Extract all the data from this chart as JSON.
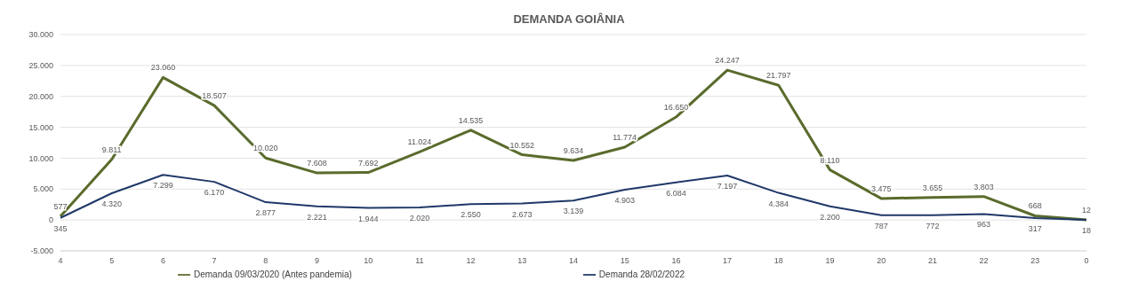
{
  "chart_data": {
    "type": "line",
    "title": "DEMANDA GOIÂNIA",
    "categories": [
      "4",
      "5",
      "6",
      "7",
      "8",
      "9",
      "10",
      "11",
      "12",
      "13",
      "14",
      "15",
      "16",
      "17",
      "18",
      "19",
      "20",
      "21",
      "22",
      "23",
      "0"
    ],
    "series": [
      {
        "name": "Demanda 09/03/2020 (Antes pandemia)",
        "color": "#5a6b2c",
        "values": [
          577,
          9811,
          23060,
          18507,
          10020,
          7608,
          7692,
          11024,
          14535,
          10552,
          9634,
          11774,
          16650,
          24247,
          21797,
          8110,
          3475,
          3655,
          3803,
          668,
          12
        ],
        "value_labels": [
          "577",
          "9.811",
          "23.060",
          "18.507",
          "10.020",
          "7.608",
          "7.692",
          "11.024",
          "14.535",
          "10.552",
          "9.634",
          "11.774",
          "16.650",
          "24.247",
          "21.797",
          "8.110",
          "3.475",
          "3.655",
          "3.803",
          "668",
          "12"
        ]
      },
      {
        "name": "Demanda 28/02/2022",
        "color": "#1f3868",
        "values": [
          345,
          4320,
          7299,
          6170,
          2877,
          2221,
          1944,
          2020,
          2550,
          2673,
          3139,
          4903,
          6084,
          7197,
          4384,
          2200,
          787,
          772,
          963,
          317,
          18
        ],
        "value_labels": [
          "345",
          "4.320",
          "7.299",
          "6.170",
          "2.877",
          "2.221",
          "1.944",
          "2.020",
          "2.550",
          "2.673",
          "3.139",
          "4.903",
          "6.084",
          "7.197",
          "4.384",
          "2.200",
          "787",
          "772",
          "963",
          "317",
          "18"
        ]
      }
    ],
    "ylim": [
      -5000,
      30000
    ],
    "yticks": [
      {
        "value": -5000,
        "label": "-5.000"
      },
      {
        "value": 0,
        "label": "0"
      },
      {
        "value": 5000,
        "label": "5.000"
      },
      {
        "value": 10000,
        "label": "10.000"
      },
      {
        "value": 15000,
        "label": "15.000"
      },
      {
        "value": 20000,
        "label": "20.000"
      },
      {
        "value": 25000,
        "label": "25.000"
      },
      {
        "value": 30000,
        "label": "30.000"
      }
    ],
    "grid": "y",
    "legend": "bottom",
    "marker": "none",
    "line_style": "solid"
  }
}
